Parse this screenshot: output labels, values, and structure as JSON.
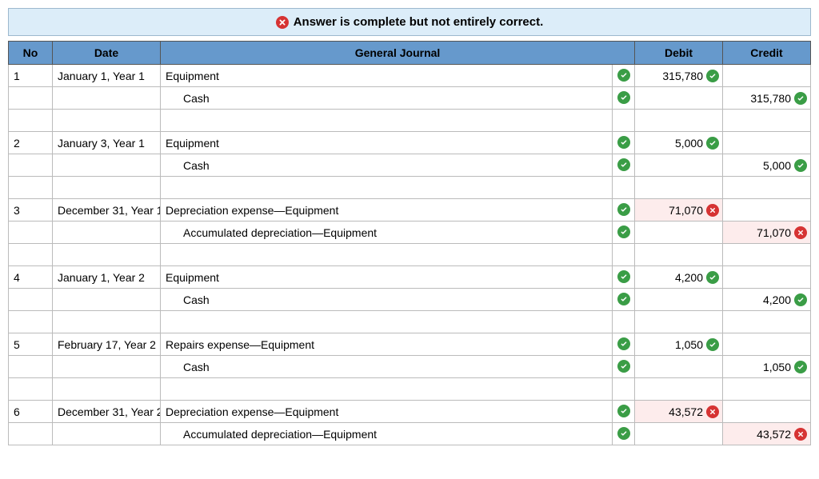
{
  "colors": {
    "banner_bg": "#dcedf9",
    "banner_border": "#9cb8ce",
    "header_bg": "#6699cc",
    "header_border": "#555555",
    "cell_border": "#bbbbbb",
    "ok": "#3a9d46",
    "err": "#d63333",
    "fail_bg": "#fdecec"
  },
  "banner": {
    "text": "Answer is complete but not entirely correct."
  },
  "columns": {
    "no": "No",
    "date": "Date",
    "gj": "General Journal",
    "debit": "Debit",
    "credit": "Credit"
  },
  "rows": [
    {
      "no": "1",
      "date": "January 1, Year 1",
      "account": "Equipment",
      "indent": false,
      "gj_status": "ok",
      "debit": "315,780",
      "debit_status": "ok",
      "credit": "",
      "credit_status": ""
    },
    {
      "no": "",
      "date": "",
      "account": "Cash",
      "indent": true,
      "gj_status": "ok",
      "debit": "",
      "debit_status": "",
      "credit": "315,780",
      "credit_status": "ok"
    },
    {
      "blank": true
    },
    {
      "no": "2",
      "date": "January 3, Year 1",
      "account": "Equipment",
      "indent": false,
      "gj_status": "ok",
      "debit": "5,000",
      "debit_status": "ok",
      "credit": "",
      "credit_status": ""
    },
    {
      "no": "",
      "date": "",
      "account": "Cash",
      "indent": true,
      "gj_status": "ok",
      "debit": "",
      "debit_status": "",
      "credit": "5,000",
      "credit_status": "ok"
    },
    {
      "blank": true
    },
    {
      "no": "3",
      "date": "December 31, Year 1",
      "account": "Depreciation expense—Equipment",
      "indent": false,
      "gj_status": "ok",
      "debit": "71,070",
      "debit_status": "err",
      "credit": "",
      "credit_status": ""
    },
    {
      "no": "",
      "date": "",
      "account": "Accumulated depreciation—Equipment",
      "indent": true,
      "gj_status": "ok",
      "debit": "",
      "debit_status": "",
      "credit": "71,070",
      "credit_status": "err"
    },
    {
      "blank": true
    },
    {
      "no": "4",
      "date": "January 1, Year 2",
      "account": "Equipment",
      "indent": false,
      "gj_status": "ok",
      "debit": "4,200",
      "debit_status": "ok",
      "credit": "",
      "credit_status": ""
    },
    {
      "no": "",
      "date": "",
      "account": "Cash",
      "indent": true,
      "gj_status": "ok",
      "debit": "",
      "debit_status": "",
      "credit": "4,200",
      "credit_status": "ok"
    },
    {
      "blank": true
    },
    {
      "no": "5",
      "date": "February 17, Year 2",
      "account": "Repairs expense—Equipment",
      "indent": false,
      "gj_status": "ok",
      "debit": "1,050",
      "debit_status": "ok",
      "credit": "",
      "credit_status": ""
    },
    {
      "no": "",
      "date": "",
      "account": "Cash",
      "indent": true,
      "gj_status": "ok",
      "debit": "",
      "debit_status": "",
      "credit": "1,050",
      "credit_status": "ok"
    },
    {
      "blank": true
    },
    {
      "no": "6",
      "date": "December 31, Year 2",
      "account": "Depreciation expense—Equipment",
      "indent": false,
      "gj_status": "ok",
      "debit": "43,572",
      "debit_status": "err",
      "credit": "",
      "credit_status": ""
    },
    {
      "no": "",
      "date": "",
      "account": "Accumulated depreciation—Equipment",
      "indent": true,
      "gj_status": "ok",
      "debit": "",
      "debit_status": "",
      "credit": "43,572",
      "credit_status": "err"
    }
  ]
}
